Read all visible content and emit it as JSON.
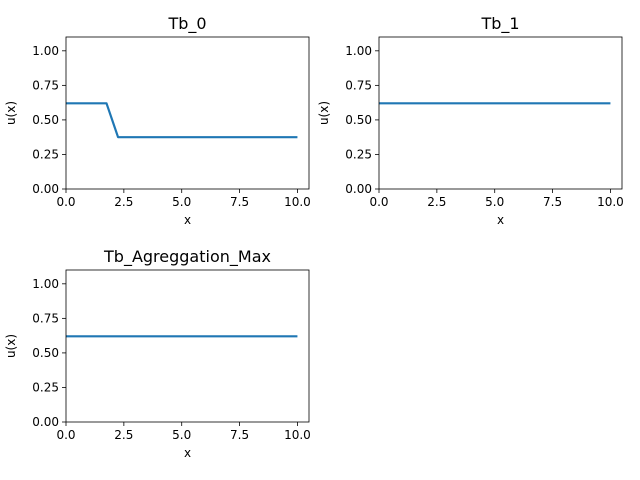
{
  "chart_data": [
    {
      "type": "line",
      "title": "Tb_0",
      "xlabel": "x",
      "ylabel": "u(x)",
      "xlim": [
        0,
        10.5
      ],
      "ylim": [
        0,
        1.1
      ],
      "xticks": [
        "0.0",
        "2.5",
        "5.0",
        "7.5",
        "10.0"
      ],
      "yticks": [
        "0.00",
        "0.25",
        "0.50",
        "0.75",
        "1.00"
      ],
      "grid": false,
      "line_color": "#1f77b4",
      "series": [
        {
          "x": [
            0,
            1.75,
            2.25,
            10
          ],
          "y": [
            0.62,
            0.62,
            0.375,
            0.375
          ]
        }
      ]
    },
    {
      "type": "line",
      "title": "Tb_1",
      "xlabel": "x",
      "ylabel": "u(x)",
      "xlim": [
        0,
        10.5
      ],
      "ylim": [
        0,
        1.1
      ],
      "xticks": [
        "0.0",
        "2.5",
        "5.0",
        "7.5",
        "10.0"
      ],
      "yticks": [
        "0.00",
        "0.25",
        "0.50",
        "0.75",
        "1.00"
      ],
      "grid": false,
      "line_color": "#1f77b4",
      "series": [
        {
          "x": [
            0,
            10
          ],
          "y": [
            0.62,
            0.62
          ]
        }
      ]
    },
    {
      "type": "line",
      "title": "Tb_Agreggation_Max",
      "xlabel": "x",
      "ylabel": "u(x)",
      "xlim": [
        0,
        10.5
      ],
      "ylim": [
        0,
        1.1
      ],
      "xticks": [
        "0.0",
        "2.5",
        "5.0",
        "7.5",
        "10.0"
      ],
      "yticks": [
        "0.00",
        "0.25",
        "0.50",
        "0.75",
        "1.00"
      ],
      "grid": false,
      "line_color": "#1f77b4",
      "series": [
        {
          "x": [
            0,
            10
          ],
          "y": [
            0.62,
            0.62
          ]
        }
      ]
    }
  ]
}
